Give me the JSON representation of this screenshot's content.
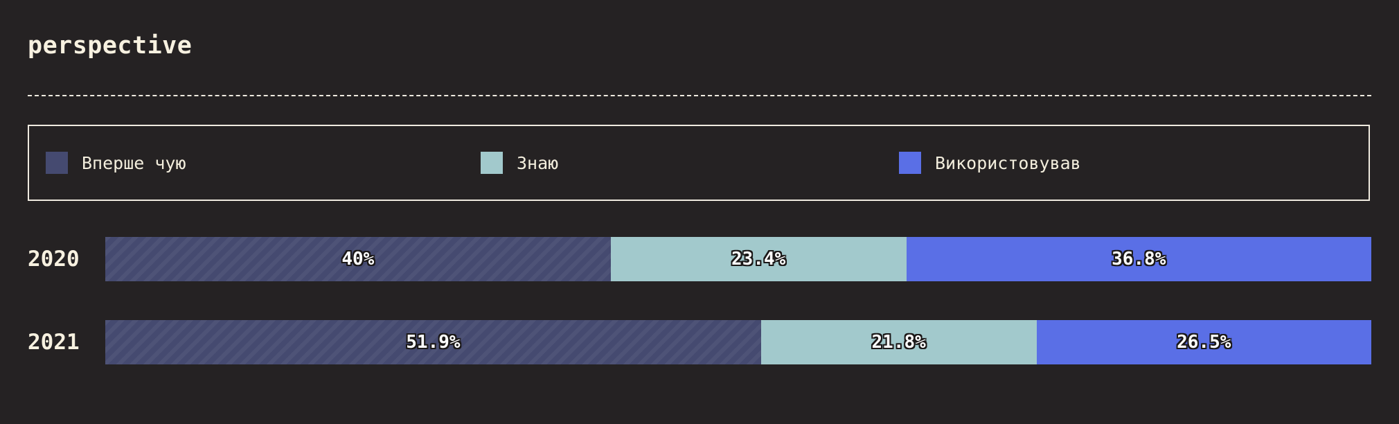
{
  "title": "perspective",
  "colors": {
    "background": "#252223",
    "series": [
      "#454a70",
      "#a2c9cc",
      "#5a6fe6"
    ]
  },
  "chart_data": {
    "type": "bar",
    "orientation": "horizontal",
    "stacked": true,
    "normalized": true,
    "title": "perspective",
    "categories": [
      "2020",
      "2021"
    ],
    "legend_position": "top",
    "series": [
      {
        "name": "Вперше чую",
        "values": [
          40,
          51.9
        ],
        "labels": [
          "40%",
          "51.9%"
        ]
      },
      {
        "name": "Знаю",
        "values": [
          23.4,
          21.8
        ],
        "labels": [
          "23.4%",
          "21.8%"
        ]
      },
      {
        "name": "Використовував",
        "values": [
          36.8,
          26.5
        ],
        "labels": [
          "36.8%",
          "26.5%"
        ]
      }
    ]
  }
}
